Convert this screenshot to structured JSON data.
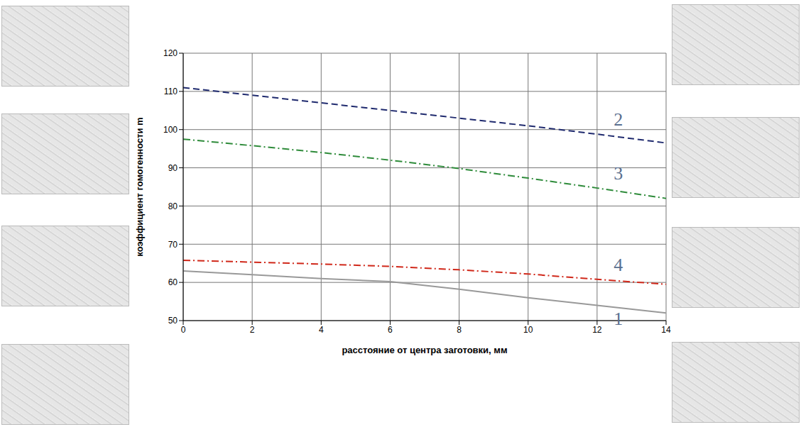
{
  "chart_data": {
    "type": "line",
    "xlabel": "расстояние от центра заготовки, мм",
    "ylabel": "коэффициент гомогенности m",
    "x": [
      0,
      2,
      4,
      6,
      8,
      10,
      12,
      14
    ],
    "series": [
      {
        "name": "2",
        "color": "#1f2a6e",
        "line_style": "dashed",
        "marker": "none",
        "values": [
          111,
          109,
          107,
          105,
          103,
          101,
          98.8,
          96.5
        ]
      },
      {
        "name": "3",
        "color": "#2e8b3a",
        "line_style": "dashdot",
        "marker": "none",
        "values": [
          97.5,
          95.8,
          94,
          92,
          89.8,
          87.3,
          84.7,
          82
        ]
      },
      {
        "name": "4",
        "color": "#d0281a",
        "line_style": "dashdot",
        "marker": "none",
        "values": [
          65.8,
          65.3,
          64.8,
          64.2,
          63.3,
          62.2,
          60.8,
          59.5
        ]
      },
      {
        "name": "1",
        "color": "#999999",
        "line_style": "solid",
        "marker": "none",
        "values": [
          63,
          62,
          61,
          60.2,
          58.2,
          56,
          54,
          52
        ]
      }
    ],
    "xlim": [
      0,
      14
    ],
    "xticks": [
      0,
      2,
      4,
      6,
      8,
      10,
      12,
      14
    ],
    "ylim": [
      50,
      120
    ],
    "yticks": [
      50,
      60,
      70,
      80,
      90,
      100,
      110,
      120
    ],
    "grid": true
  }
}
